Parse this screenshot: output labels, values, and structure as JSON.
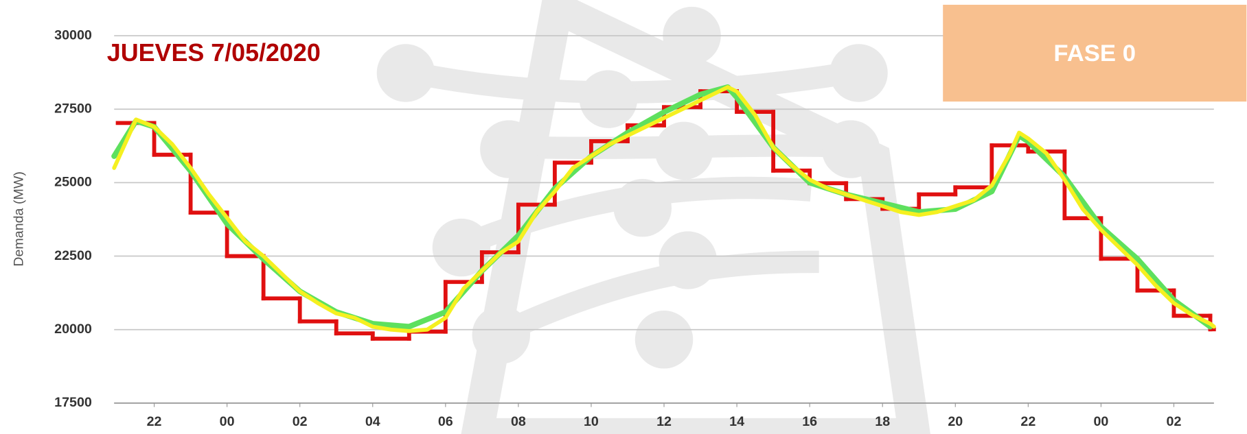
{
  "chart_data": {
    "type": "line",
    "title": "JUEVES 7/05/2020",
    "annotation": "FASE 0",
    "ylabel": "Demanda (MW)",
    "grid": true,
    "xlim": [
      20.9,
      51.1
    ],
    "xticks": [
      22,
      {
        "value": 24,
        "label": "00"
      },
      {
        "value": 26,
        "label": "02"
      },
      {
        "value": 28,
        "label": "04"
      },
      {
        "value": 30,
        "label": "06"
      },
      {
        "value": 32,
        "label": "08"
      },
      {
        "value": 34,
        "label": "10"
      },
      {
        "value": 36,
        "label": "12"
      },
      {
        "value": 38,
        "label": "14"
      },
      {
        "value": 40,
        "label": "16"
      },
      {
        "value": 42,
        "label": "18"
      },
      {
        "value": 44,
        "label": "20"
      },
      {
        "value": 46,
        "label": "22"
      },
      {
        "value": 48,
        "label": "00"
      },
      {
        "value": 50,
        "label": "02"
      }
    ],
    "ylim": [
      17500,
      30000
    ],
    "yticks": [
      17500,
      20000,
      22500,
      25000,
      27500,
      30000
    ],
    "series": [
      {
        "color": "#e01010",
        "step": true,
        "x": [
          21,
          22,
          23,
          24,
          25,
          26,
          27,
          28,
          29,
          30,
          31,
          32,
          33,
          34,
          35,
          36,
          37,
          38,
          39,
          40,
          41,
          42,
          43,
          44,
          45,
          46,
          47,
          48,
          49,
          50,
          51
        ],
        "values": [
          27030,
          25950,
          23980,
          22500,
          21060,
          20280,
          19870,
          19690,
          19930,
          21620,
          22630,
          24250,
          25680,
          26410,
          26950,
          27570,
          28110,
          27410,
          25410,
          24980,
          24440,
          24110,
          24600,
          24840,
          26270,
          26060,
          23790,
          22410,
          21330,
          20470,
          20010
        ]
      },
      {
        "color": "#5ee05e",
        "step": false,
        "x": [
          20.9,
          21.5,
          22,
          23,
          24,
          25,
          26,
          27,
          28,
          29,
          30,
          31,
          32,
          33,
          34,
          35,
          36,
          37,
          37.75,
          38,
          39,
          40,
          41,
          42,
          43,
          44,
          45,
          45.75,
          46,
          47,
          48,
          49,
          50,
          51
        ],
        "values": [
          25900,
          27100,
          26900,
          25400,
          23600,
          22400,
          21300,
          20600,
          20200,
          20100,
          20600,
          22000,
          23200,
          24800,
          25900,
          26700,
          27400,
          28000,
          28250,
          27900,
          26200,
          25000,
          24600,
          24300,
          24000,
          24100,
          24700,
          26600,
          26400,
          25200,
          23500,
          22400,
          21000,
          20100
        ]
      },
      {
        "color": "#f5f020",
        "step": false,
        "x": [
          20.9,
          21.5,
          22,
          22.5,
          23,
          23.5,
          24,
          24.5,
          25,
          25.5,
          26,
          26.5,
          27,
          27.5,
          28,
          28.5,
          29,
          29.5,
          30,
          30.5,
          31,
          31.5,
          32,
          32.5,
          33,
          33.5,
          34,
          34.5,
          35,
          35.5,
          36,
          36.5,
          37,
          37.5,
          37.75,
          38,
          38.5,
          39,
          39.5,
          40,
          40.5,
          41,
          41.5,
          42,
          42.5,
          43,
          43.5,
          44,
          44.5,
          45,
          45.5,
          45.75,
          46,
          46.5,
          47,
          47.5,
          48,
          48.5,
          49,
          49.5,
          50,
          50.5,
          51,
          51.1
        ],
        "values": [
          25500,
          27150,
          26900,
          26300,
          25500,
          24600,
          23800,
          23000,
          22500,
          21900,
          21300,
          20900,
          20550,
          20400,
          20100,
          20000,
          19950,
          20000,
          20400,
          21400,
          22000,
          22600,
          23000,
          24000,
          24700,
          25500,
          25900,
          26300,
          26600,
          26900,
          27200,
          27500,
          27800,
          28100,
          28250,
          28100,
          27300,
          26200,
          25600,
          25100,
          24800,
          24600,
          24400,
          24200,
          24000,
          23900,
          24000,
          24200,
          24400,
          24900,
          26000,
          26700,
          26500,
          26000,
          25100,
          24100,
          23400,
          22800,
          22200,
          21500,
          20900,
          20500,
          20200,
          20100
        ]
      }
    ]
  }
}
